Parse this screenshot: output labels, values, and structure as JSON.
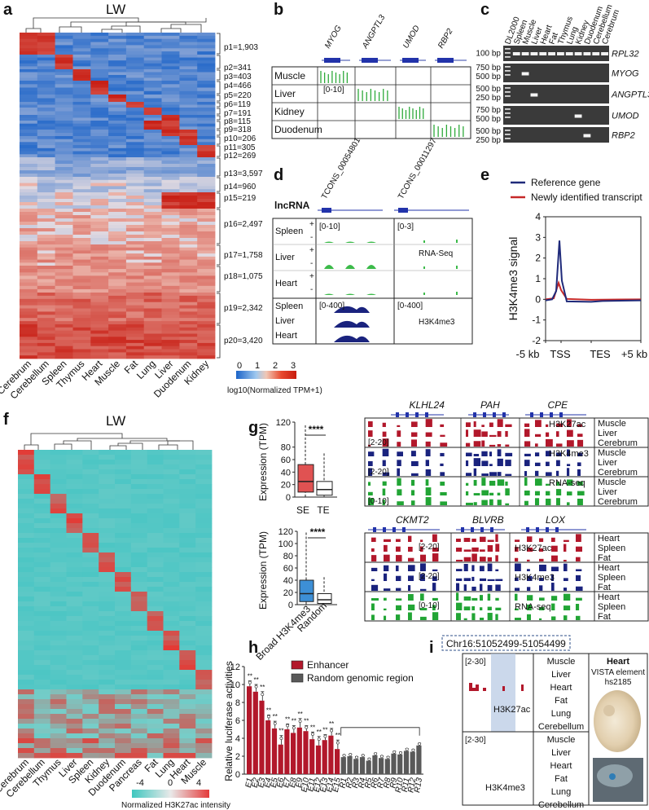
{
  "panels": {
    "a": "a",
    "b": "b",
    "c": "c",
    "d": "d",
    "e": "e",
    "f": "f",
    "g": "g",
    "h": "h",
    "i": "i"
  },
  "a": {
    "title": "LW",
    "tissues": [
      "Cerebrum",
      "Cerebellum",
      "Spleen",
      "Thymus",
      "Heart",
      "Muscle",
      "Fat",
      "Lung",
      "Liver",
      "Duodenum",
      "Kidney"
    ],
    "clusters": [
      "p1=1,903",
      "p2=341",
      "p3=403",
      "p4=466",
      "p5=220",
      "p6=119",
      "p7=191",
      "p8=115",
      "p9=318",
      "p10=206",
      "p11=305",
      "p12=269",
      "p13=3,597",
      "p14=960",
      "p15=219",
      "p16=2,497",
      "p17=1,758",
      "p18=1,075",
      "p19=2,342",
      "p20=3,420"
    ],
    "scale_ticks": [
      "0",
      "1",
      "2",
      "3"
    ],
    "scale_label": "log10(Normalized TPM+1)"
  },
  "b": {
    "genes": [
      "MYOG",
      "ANGPTL3",
      "UMOD",
      "RBP2"
    ],
    "rows": [
      "Muscle",
      "Liver",
      "Kidney",
      "Duodenum"
    ],
    "range": "[0-10]"
  },
  "c": {
    "lanes": [
      "DL2000",
      "Spleen",
      "Muscle",
      "Liver",
      "Heart",
      "Fat",
      "Thymus",
      "Lung",
      "Kidney",
      "Duodenum",
      "Cerebellum",
      "Cerebrum"
    ],
    "genes": [
      "RPL32",
      "MYOG",
      "ANGPTL3",
      "UMOD",
      "RBP2"
    ],
    "ladders": [
      [
        "100 bp"
      ],
      [
        "750 bp",
        "500 bp"
      ],
      [
        "500 bp",
        "250 bp"
      ],
      [
        "750 bp",
        "500 bp"
      ],
      [
        "500 bp",
        "250 bp"
      ]
    ]
  },
  "d": {
    "lncrna": "lncRNA",
    "transcripts": [
      "TCONS_00054801",
      "TCONS_00011297"
    ],
    "tissues": [
      "Spleen",
      "Liver",
      "Heart"
    ],
    "ranges_rna": [
      "[0-10]",
      "[0-3]"
    ],
    "ranges_chip": [
      "[0-400]",
      "[0-400]"
    ],
    "rnaseq": "RNA-Seq",
    "h3k4me3": "H3K4me3"
  },
  "e": {
    "legend": [
      "Reference gene",
      "Newly identified transcript"
    ],
    "colors": [
      "#1f2a7a",
      "#c62828"
    ],
    "ylabel": "H3K4me3 signal",
    "yticks": [
      "4",
      "3",
      "2",
      "1",
      "0",
      "-1",
      "-2"
    ],
    "xticks": [
      "-5 kb",
      "TSS",
      "TES",
      "+5 kb"
    ]
  },
  "f": {
    "title": "LW",
    "tissues": [
      "Cerebrum",
      "Cerebellum",
      "Thymus",
      "Liver",
      "Spleen",
      "Kidney",
      "Duodenum",
      "Pancreas",
      "Fat",
      "Lung",
      "Heart",
      "Muscle"
    ],
    "scale_ticks": [
      "-4",
      "0",
      "4"
    ],
    "scale_label": "Normalized H3K27ac intensity"
  },
  "g": {
    "ylabel": "Expression (TPM)",
    "yticks1": [
      "120",
      "80",
      "60",
      "40",
      "20",
      "0"
    ],
    "xlabels1": [
      "SE",
      "TE"
    ],
    "yticks2": [
      "120",
      "100",
      "80",
      "60",
      "40",
      "20",
      "0"
    ],
    "xlabels2": [
      "Broad H3K4me3",
      "Random"
    ],
    "signif": "****",
    "top_genes": [
      "KLHL24",
      "PAH",
      "CPE"
    ],
    "top_tissues": [
      "Muscle",
      "Liver",
      "Cerebrum"
    ],
    "bottom_genes": [
      "CKMT2",
      "BLVRB",
      "LOX"
    ],
    "bottom_tissues": [
      "Heart",
      "Spleen",
      "Fat"
    ],
    "marks": [
      "H3K27ac",
      "H3K4me3",
      "RNA-seq"
    ],
    "ranges": [
      "[2-20]",
      "[2-20]",
      "[0-10]"
    ]
  },
  "h": {
    "ylabel": "Relative luciferase activities",
    "legend": [
      "Enhancer",
      "Random genomic region"
    ],
    "colors": [
      "#b2182b",
      "#595959"
    ],
    "yticks": [
      "12",
      "10",
      "8",
      "6",
      "4",
      "2",
      "0"
    ],
    "sig": "**"
  },
  "i": {
    "region": "Chr16:51052499-51054499",
    "range": "[2-30]",
    "tissues": [
      "Muscle",
      "Liver",
      "Heart",
      "Fat",
      "Lung",
      "Cerebellum"
    ],
    "marks": [
      "H3K27ac",
      "H3K4me3"
    ],
    "embryo_title": "Heart",
    "embryo_sub1": "VISTA element",
    "embryo_sub2": "hs2185"
  },
  "chart_data": {
    "type": "bar",
    "title": "",
    "xlabel": "",
    "ylabel": "Relative luciferase activities",
    "ylim": [
      0,
      12
    ],
    "categories": [
      "E1",
      "E2",
      "E3",
      "E4",
      "E5",
      "E6",
      "E7",
      "E8",
      "E9",
      "E10",
      "E11",
      "E12",
      "E13",
      "E14",
      "E15",
      "R1",
      "R2",
      "R3",
      "R4",
      "R5",
      "R6",
      "R7",
      "R8",
      "R9",
      "R10",
      "R11",
      "R12",
      "R13"
    ],
    "series": [
      {
        "name": "Enhancer",
        "values": [
          9.8,
          9.2,
          8.2,
          6.0,
          5.1,
          3.3,
          5.0,
          4.6,
          5.2,
          4.8,
          3.9,
          3.2,
          3.8,
          4.3,
          2.8,
          0,
          0,
          0,
          0,
          0,
          0,
          0,
          0,
          0,
          0,
          0,
          0,
          0
        ]
      },
      {
        "name": "Random genomic region",
        "values": [
          0,
          0,
          0,
          0,
          0,
          0,
          0,
          0,
          0,
          0,
          0,
          0,
          0,
          0,
          0,
          1.9,
          2.0,
          1.7,
          1.9,
          1.5,
          2.1,
          1.8,
          1.7,
          2.3,
          2.2,
          2.6,
          2.5,
          3.2
        ]
      }
    ]
  }
}
